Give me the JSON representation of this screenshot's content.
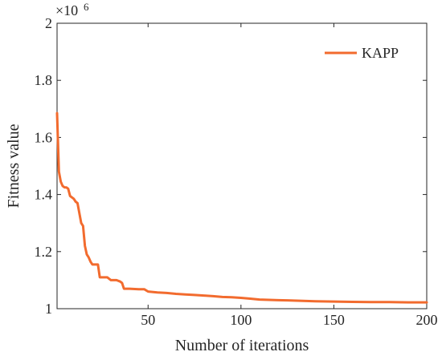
{
  "chart_data": {
    "type": "line",
    "title": "",
    "xlabel": "Number of iterations",
    "ylabel": "Fitness value",
    "xlim": [
      1,
      200
    ],
    "ylim": [
      1,
      2
    ],
    "x_ticks": [
      50,
      100,
      150,
      200
    ],
    "x_tick_labels": [
      "50",
      "100",
      "150",
      "200"
    ],
    "y_ticks": [
      1,
      1.2,
      1.4,
      1.6,
      1.8,
      2
    ],
    "y_tick_labels": [
      "1",
      "1.2",
      "1.4",
      "1.6",
      "1.8",
      "2"
    ],
    "y_exponent": {
      "base": "×10",
      "power": "6"
    },
    "y_scale_multiplier": 1000000,
    "grid": false,
    "legend_position": "top-right",
    "series": [
      {
        "name": "KAPP",
        "color": "#F26B2E",
        "x": [
          1,
          2,
          3,
          4,
          5,
          6,
          7,
          8,
          9,
          10,
          11,
          12,
          13,
          14,
          15,
          16,
          17,
          18,
          19,
          20,
          21,
          22,
          23,
          24,
          25,
          26,
          28,
          30,
          31,
          33,
          35,
          36,
          37,
          40,
          45,
          48,
          50,
          55,
          60,
          65,
          70,
          75,
          80,
          85,
          90,
          95,
          100,
          105,
          110,
          115,
          120,
          125,
          130,
          135,
          140,
          150,
          160,
          170,
          180,
          190,
          200
        ],
        "values": [
          1.685,
          1.48,
          1.445,
          1.43,
          1.425,
          1.425,
          1.42,
          1.395,
          1.39,
          1.385,
          1.375,
          1.37,
          1.335,
          1.3,
          1.29,
          1.22,
          1.19,
          1.18,
          1.165,
          1.155,
          1.155,
          1.155,
          1.155,
          1.11,
          1.11,
          1.11,
          1.11,
          1.1,
          1.1,
          1.1,
          1.095,
          1.09,
          1.07,
          1.07,
          1.068,
          1.068,
          1.06,
          1.057,
          1.055,
          1.052,
          1.05,
          1.048,
          1.046,
          1.044,
          1.041,
          1.04,
          1.038,
          1.035,
          1.032,
          1.031,
          1.03,
          1.029,
          1.028,
          1.027,
          1.026,
          1.025,
          1.024,
          1.023,
          1.023,
          1.022,
          1.022
        ]
      }
    ]
  }
}
